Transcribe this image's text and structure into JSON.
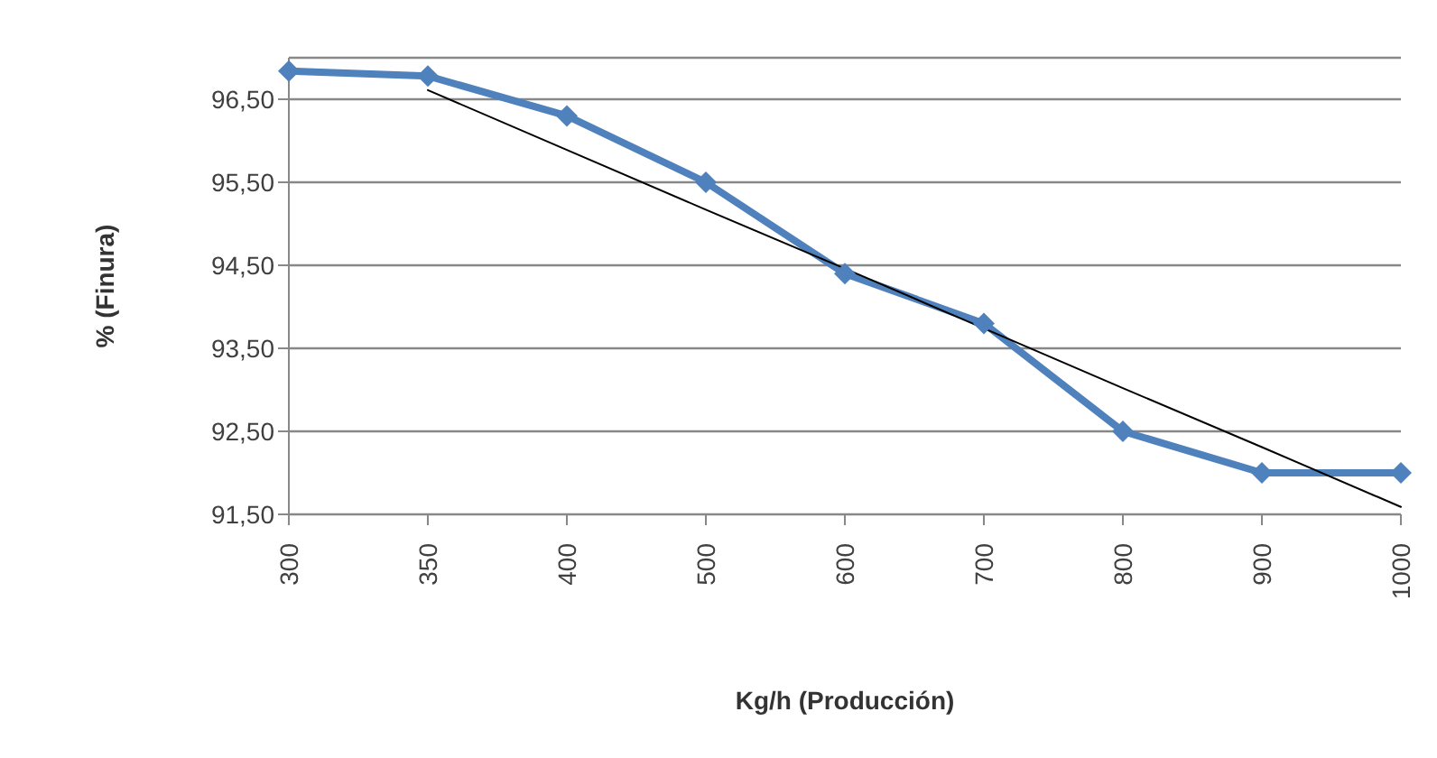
{
  "chart_data": {
    "type": "line",
    "xlabel": "Kg/h (Producción)",
    "ylabel": "% (Finura)",
    "categories": [
      "300",
      "350",
      "400",
      "500",
      "600",
      "700",
      "800",
      "900",
      "1000"
    ],
    "series": [
      {
        "color": "#4f81bd",
        "marker": "diamond",
        "values": [
          96.84,
          96.78,
          96.3,
          95.5,
          94.4,
          93.8,
          92.5,
          92.0,
          92.0
        ]
      },
      {
        "color": "#000000",
        "marker": "none",
        "values": [
          null,
          96.61,
          95.89,
          95.17,
          94.46,
          93.74,
          93.02,
          92.31,
          91.59
        ]
      }
    ],
    "ylim": [
      91.5,
      97.0
    ],
    "yticks": [
      {
        "value": 91.5,
        "label": "91,50"
      },
      {
        "value": 92.5,
        "label": "92,50"
      },
      {
        "value": 93.5,
        "label": "93,50"
      },
      {
        "value": 94.5,
        "label": "94,50"
      },
      {
        "value": 95.5,
        "label": "95,50"
      },
      {
        "value": 96.5,
        "label": "96,50"
      }
    ],
    "grid": "y",
    "legend": false
  }
}
